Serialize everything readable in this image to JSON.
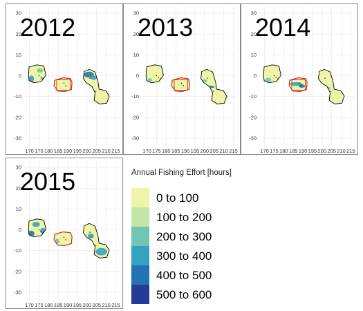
{
  "panels": [
    {
      "year": "2012",
      "rect": true
    },
    {
      "year": "2013",
      "rect": true
    },
    {
      "year": "2014",
      "rect": true
    },
    {
      "year": "2015",
      "rect": false
    }
  ],
  "axes": {
    "x_ticks": [
      "170",
      "175",
      "180",
      "185",
      "190",
      "195",
      "200",
      "205",
      "210",
      "215"
    ],
    "y_ticks": [
      "30",
      "20",
      "10",
      "0",
      "-10",
      "-20",
      "-30"
    ]
  },
  "legend": {
    "title": "Annual Fishing Effort [hours]",
    "items": [
      {
        "label": "0 to 100",
        "color": "#eef5a8"
      },
      {
        "label": "100 to 200",
        "color": "#c3e6a6"
      },
      {
        "label": "200 to 300",
        "color": "#6fc7b2"
      },
      {
        "label": "300 to 400",
        "color": "#34a2c3"
      },
      {
        "label": "400 to 500",
        "color": "#2372b2"
      },
      {
        "label": "500 to 600",
        "color": "#243c95"
      }
    ]
  },
  "colors": {
    "outline": "#000000",
    "closure_outline": "#e02020",
    "grid": "#e6e6e6"
  }
}
